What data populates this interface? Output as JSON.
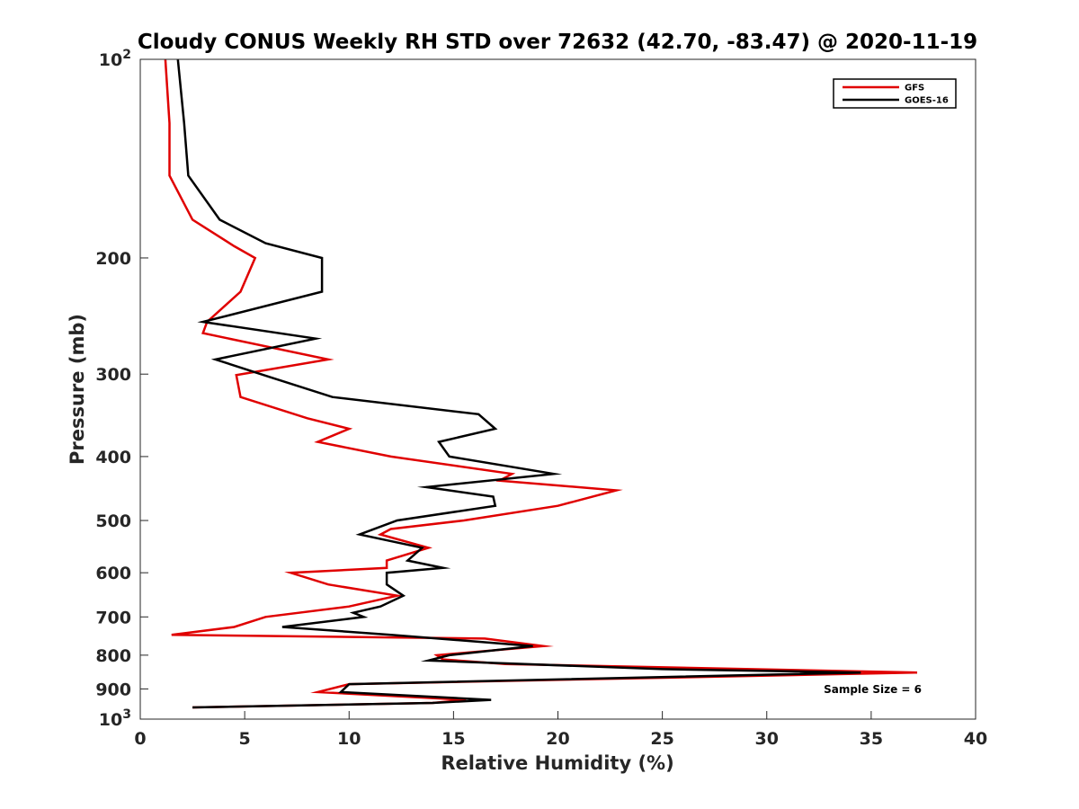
{
  "chart_data": {
    "type": "line",
    "title": "Cloudy CONUS Weekly RH STD over 72632 (42.70, -83.47) @ 2020-11-19",
    "xlabel": "Relative Humidity (%)",
    "ylabel": "Pressure (mb)",
    "xlim": [
      0,
      40
    ],
    "ylim": [
      100,
      1000
    ],
    "y_scale": "log",
    "y_reversed": true,
    "grid": false,
    "legend_position": "top-right",
    "x_ticks": [
      0,
      5,
      10,
      15,
      20,
      25,
      30,
      35,
      40
    ],
    "y_ticks": [
      {
        "value": 100,
        "base": "10",
        "exp": "2"
      },
      {
        "value": 200,
        "label": "200"
      },
      {
        "value": 300,
        "label": "300"
      },
      {
        "value": 400,
        "label": "400"
      },
      {
        "value": 500,
        "label": "500"
      },
      {
        "value": 600,
        "label": "600"
      },
      {
        "value": 700,
        "label": "700"
      },
      {
        "value": 800,
        "label": "800"
      },
      {
        "value": 900,
        "label": "900"
      },
      {
        "value": 1000,
        "base": "10",
        "exp": "3"
      }
    ],
    "series": [
      {
        "name": "GFS",
        "color": "#e00000",
        "points": [
          [
            1.2,
            100
          ],
          [
            1.4,
            125
          ],
          [
            1.4,
            150
          ],
          [
            2.5,
            175
          ],
          [
            4.5,
            192
          ],
          [
            5.5,
            200
          ],
          [
            4.8,
            225
          ],
          [
            3.2,
            250
          ],
          [
            3.0,
            260
          ],
          [
            9.0,
            285
          ],
          [
            4.6,
            301
          ],
          [
            4.8,
            325
          ],
          [
            8.0,
            350
          ],
          [
            10.0,
            363
          ],
          [
            8.5,
            380
          ],
          [
            12.0,
            400
          ],
          [
            17.8,
            425
          ],
          [
            17.2,
            435
          ],
          [
            22.8,
            450
          ],
          [
            20.0,
            475
          ],
          [
            15.5,
            500
          ],
          [
            12.0,
            515
          ],
          [
            11.5,
            525
          ],
          [
            13.8,
            550
          ],
          [
            11.8,
            575
          ],
          [
            11.8,
            590
          ],
          [
            7.2,
            600
          ],
          [
            9.0,
            625
          ],
          [
            12.3,
            650
          ],
          [
            10.0,
            675
          ],
          [
            6.0,
            700
          ],
          [
            4.5,
            725
          ],
          [
            1.5,
            745
          ],
          [
            16.5,
            755
          ],
          [
            19.3,
            775
          ],
          [
            14.2,
            800
          ],
          [
            14.5,
            812
          ],
          [
            17.5,
            825
          ],
          [
            37.2,
            850
          ],
          [
            10.0,
            885
          ],
          [
            8.5,
            910
          ],
          [
            15.6,
            935
          ],
          [
            14.0,
            945
          ],
          [
            2.5,
            960
          ]
        ]
      },
      {
        "name": "GOES-16",
        "color": "#000000",
        "points": [
          [
            1.8,
            100
          ],
          [
            2.1,
            125
          ],
          [
            2.3,
            150
          ],
          [
            3.8,
            175
          ],
          [
            6.0,
            190
          ],
          [
            8.7,
            200
          ],
          [
            8.7,
            225
          ],
          [
            3.0,
            250
          ],
          [
            8.4,
            265
          ],
          [
            3.6,
            285
          ],
          [
            6.2,
            303
          ],
          [
            9.2,
            325
          ],
          [
            16.2,
            345
          ],
          [
            17.0,
            363
          ],
          [
            14.3,
            380
          ],
          [
            14.8,
            400
          ],
          [
            19.8,
            425
          ],
          [
            13.7,
            445
          ],
          [
            16.9,
            460
          ],
          [
            17.0,
            475
          ],
          [
            12.3,
            500
          ],
          [
            10.5,
            525
          ],
          [
            13.5,
            550
          ],
          [
            12.8,
            575
          ],
          [
            14.5,
            590
          ],
          [
            11.8,
            600
          ],
          [
            11.8,
            625
          ],
          [
            12.6,
            650
          ],
          [
            11.5,
            675
          ],
          [
            10.2,
            690
          ],
          [
            10.7,
            700
          ],
          [
            6.8,
            725
          ],
          [
            12.0,
            745
          ],
          [
            18.8,
            775
          ],
          [
            14.8,
            800
          ],
          [
            13.8,
            815
          ],
          [
            25.0,
            840
          ],
          [
            34.5,
            850
          ],
          [
            10.0,
            885
          ],
          [
            9.6,
            910
          ],
          [
            16.8,
            935
          ],
          [
            14.0,
            945
          ],
          [
            2.5,
            960
          ]
        ]
      }
    ],
    "annotation": "Sample Size = 6"
  }
}
